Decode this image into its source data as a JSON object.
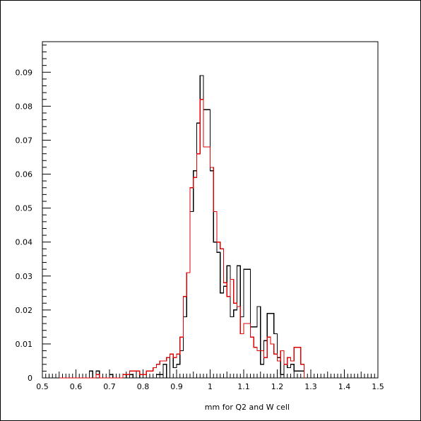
{
  "chart_data": {
    "type": "line",
    "style": "step-histogram",
    "xlabel": "mm for Q2 and W cell",
    "ylabel": "",
    "title": "",
    "xlim": [
      0.5,
      1.5
    ],
    "ylim": [
      0,
      0.099
    ],
    "grid": false,
    "x_ticks": [
      "0.5",
      "0.6",
      "0.7",
      "0.8",
      "0.9",
      "1",
      "1.1",
      "1.2",
      "1.3",
      "1.4",
      "1.5"
    ],
    "y_ticks": [
      "0",
      "0.01",
      "0.02",
      "0.03",
      "0.04",
      "0.05",
      "0.06",
      "0.07",
      "0.08",
      "0.09"
    ],
    "bin_width": 0.01,
    "series": [
      {
        "color": "#000000",
        "x_start": 0.55,
        "values": [
          0,
          0,
          0,
          0,
          0,
          0,
          0,
          0,
          0,
          0.002,
          0,
          0.002,
          0,
          0,
          0,
          0.001,
          0,
          0,
          0,
          0,
          0.001,
          0.001,
          0,
          0.002,
          0,
          0,
          0,
          0,
          0,
          0.001,
          0.001,
          0.004,
          0,
          0.007,
          0.003,
          0.004,
          0.008,
          0.018,
          0.031,
          0.049,
          0.061,
          0.075,
          0.089,
          0.079,
          0.079,
          0.061,
          0.04,
          0.037,
          0.025,
          0.027,
          0.033,
          0.018,
          0.02,
          0.033,
          0.018,
          0.032,
          0.032,
          0.015,
          0.015,
          0.021,
          0.004,
          0.011,
          0.019,
          0.019,
          0.013,
          0.006,
          0.001,
          0.004,
          0.003,
          0.004,
          0.002,
          0.002,
          0.002
        ]
      },
      {
        "color": "#e00000",
        "x_start": 0.55,
        "values": [
          0,
          0,
          0,
          0,
          0,
          0,
          0,
          0,
          0,
          0,
          0,
          0.001,
          0,
          0,
          0,
          0,
          0,
          0,
          0,
          0.001,
          0.001,
          0.002,
          0.002,
          0.002,
          0.001,
          0.001,
          0.002,
          0.002,
          0.003,
          0.004,
          0.005,
          0.005,
          0.006,
          0.007,
          0.006,
          0.007,
          0.012,
          0.024,
          0.031,
          0.056,
          0.059,
          0.066,
          0.082,
          0.068,
          0.068,
          0.062,
          0.049,
          0.04,
          0.038,
          0.028,
          0.024,
          0.029,
          0.022,
          0.021,
          0.013,
          0.016,
          0.016,
          0.012,
          0.009,
          0.008,
          0.008,
          0.006,
          0.012,
          0.01,
          0.007,
          0.005,
          0.008,
          0.004,
          0.006,
          0.005,
          0.009,
          0.009,
          0.004
        ]
      }
    ]
  }
}
